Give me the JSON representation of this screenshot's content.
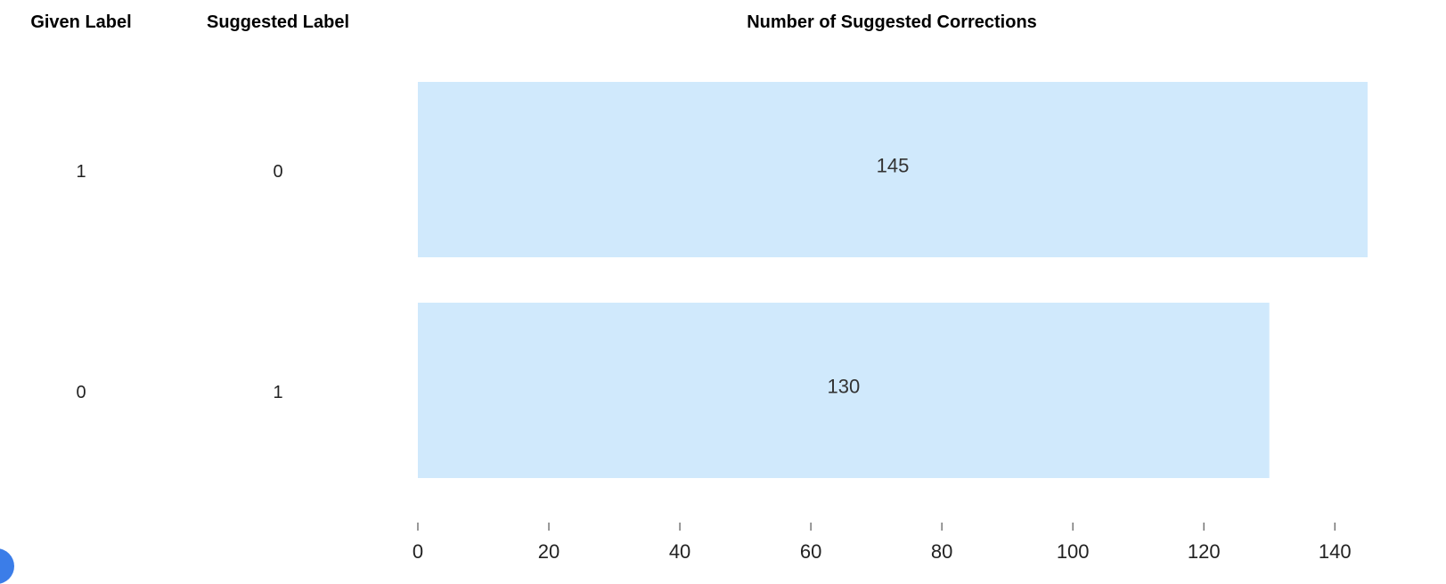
{
  "headers": {
    "given_label": "Given Label",
    "suggested_label": "Suggested Label",
    "chart_title": "Number of Suggested Corrections"
  },
  "rows": [
    {
      "given": "1",
      "suggested": "0"
    },
    {
      "given": "0",
      "suggested": "1"
    }
  ],
  "chart_data": {
    "type": "bar",
    "orientation": "horizontal",
    "title": "Number of Suggested Corrections",
    "xlabel": "",
    "ylabel": "",
    "categories": [
      "1 → 0",
      "0 → 1"
    ],
    "values": [
      145,
      130
    ],
    "data_labels": [
      "145",
      "130"
    ],
    "xlim": [
      0,
      145
    ],
    "xticks": [
      0,
      20,
      40,
      60,
      80,
      100,
      120,
      140
    ],
    "grid": false,
    "legend": "none",
    "bar_color": "#d0e9fc",
    "text_color": "#333333",
    "axis_color": "#555555"
  },
  "colors": {
    "accent_blob": "#3b7de8"
  }
}
